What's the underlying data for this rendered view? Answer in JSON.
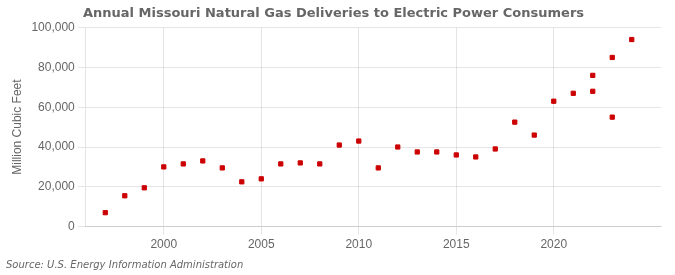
{
  "chart_data": {
    "type": "scatter",
    "title": "Annual Missouri Natural Gas Deliveries to Electric Power Consumers",
    "y_label": "Million Cubic Feet",
    "annotations": [
      "Source: U.S. Energy Information Administration"
    ],
    "x": [
      1997,
      1998,
      1999,
      2000,
      2001,
      2002,
      2003,
      2004,
      2005,
      2006,
      2007,
      2008,
      2009,
      2010,
      2011,
      2012,
      2013,
      2014,
      2015,
      2016,
      2017,
      2018,
      2019,
      2020,
      2021,
      2022,
      2023,
      2022,
      2023,
      2024
    ],
    "values": [
      7000,
      15500,
      19500,
      30000,
      31500,
      33000,
      29500,
      22500,
      24000,
      31500,
      32000,
      31500,
      41000,
      43000,
      29500,
      40000,
      37500,
      37500,
      36000,
      35000,
      39000,
      52500,
      46000,
      63000,
      67000,
      68000,
      55000,
      76000,
      85000,
      94000
    ],
    "color": "#cc0000",
    "marker": "square",
    "xlim": [
      1996.0,
      2025.5
    ],
    "xticks": [
      2000,
      2005,
      2010,
      2015,
      2020
    ],
    "ylim": [
      0,
      100000
    ],
    "yticks": [
      0,
      {
        "value": 20000,
        "label": "20,000"
      },
      {
        "value": 40000,
        "label": "40,000"
      },
      {
        "value": 60000,
        "label": "60,000"
      },
      {
        "value": 80000,
        "label": "80,000"
      },
      {
        "value": 100000,
        "label": "100,000"
      }
    ],
    "grid": true,
    "legend": false
  }
}
